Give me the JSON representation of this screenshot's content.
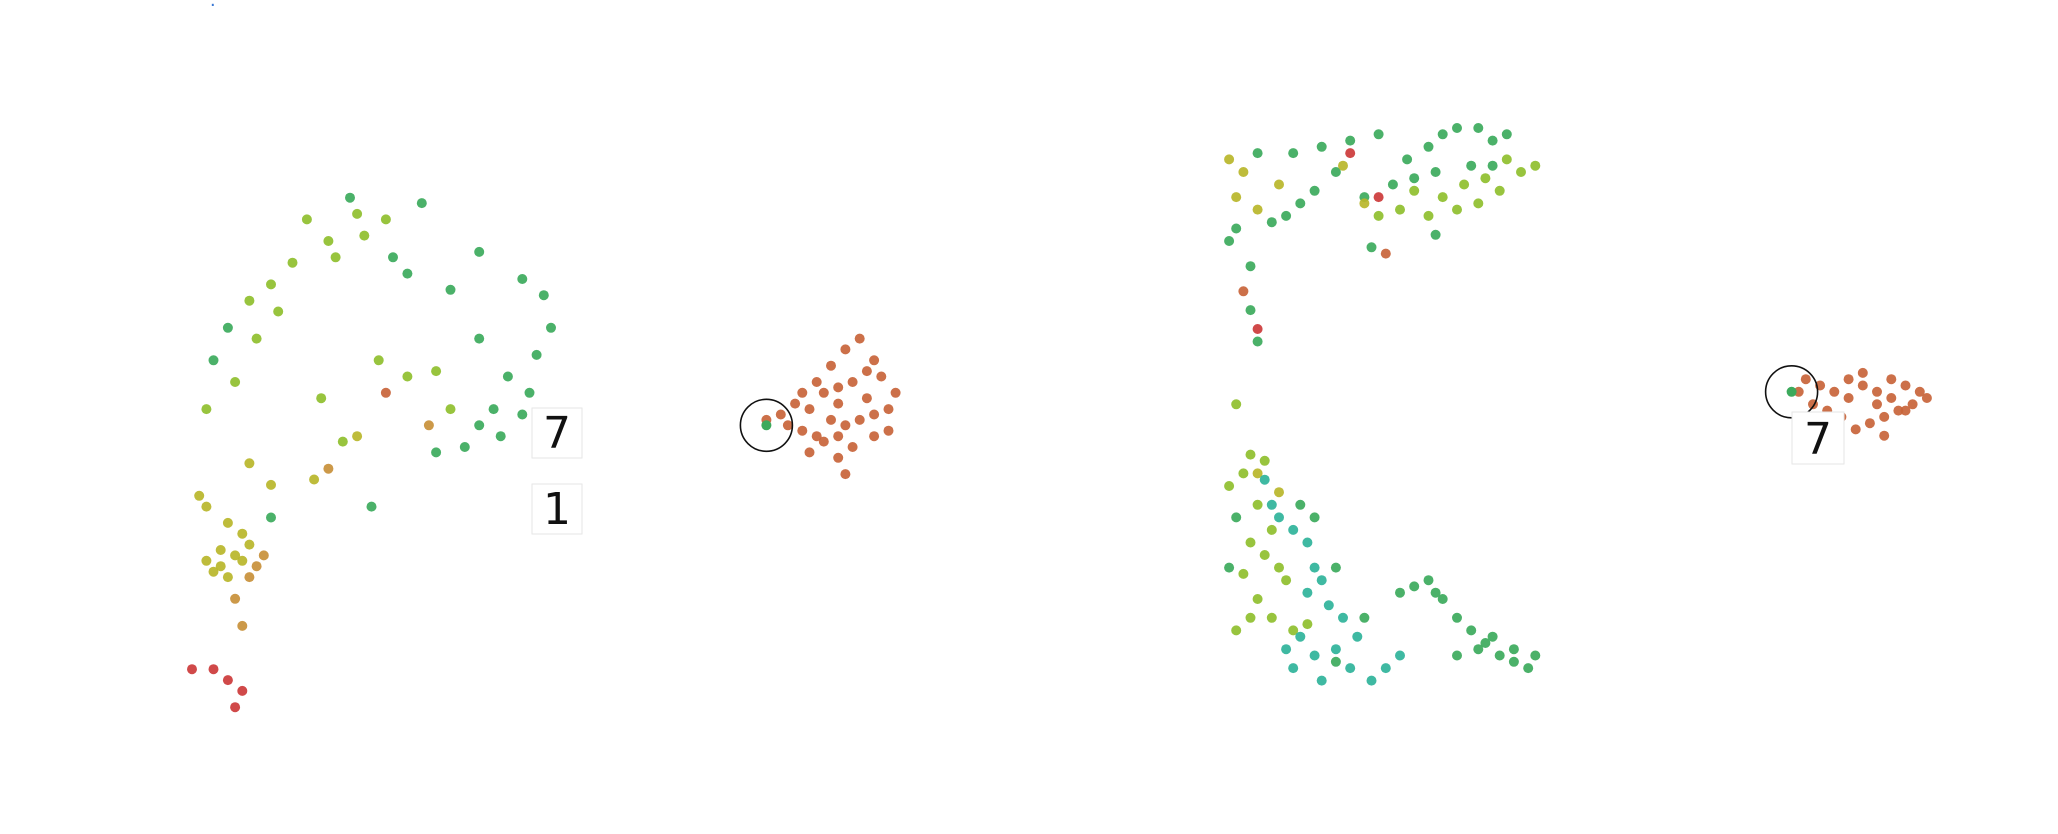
{
  "header": {
    "link_fragment": "."
  },
  "palette": {
    "orange": "#c8643a",
    "green": "#3caa5c",
    "lime": "#8fbf2e",
    "olive": "#b8b62a",
    "teal": "#2fb39a",
    "red": "#cc3a3a",
    "tan": "#c8903a"
  },
  "thumbnails": {
    "left_seven": "7",
    "left_one": "1",
    "right_seven": "7"
  },
  "chart_data": [
    {
      "type": "scatter",
      "title": "",
      "xlabel": "",
      "ylabel": "",
      "grid": false,
      "legend": "none",
      "xlim": [
        0,
        1
      ],
      "ylim": [
        0,
        1
      ],
      "highlight_point": {
        "x": 0.8,
        "y": 0.54
      },
      "series": [
        {
          "color_key": "green",
          "points": [
            [
              0.22,
              0.96
            ],
            [
              0.32,
              0.95
            ],
            [
              0.4,
              0.86
            ],
            [
              0.46,
              0.81
            ],
            [
              0.49,
              0.78
            ],
            [
              0.5,
              0.72
            ],
            [
              0.48,
              0.67
            ],
            [
              0.44,
              0.63
            ],
            [
              0.47,
              0.6
            ],
            [
              0.42,
              0.57
            ],
            [
              0.4,
              0.54
            ],
            [
              0.43,
              0.52
            ],
            [
              0.46,
              0.56
            ],
            [
              0.38,
              0.5
            ],
            [
              0.34,
              0.49
            ],
            [
              0.48,
              0.5
            ],
            [
              0.36,
              0.79
            ],
            [
              0.3,
              0.82
            ],
            [
              0.28,
              0.85
            ],
            [
              0.05,
              0.72
            ],
            [
              0.03,
              0.66
            ],
            [
              0.11,
              0.37
            ],
            [
              0.25,
              0.39
            ],
            [
              0.4,
              0.7
            ]
          ]
        },
        {
          "color_key": "lime",
          "points": [
            [
              0.16,
              0.92
            ],
            [
              0.23,
              0.93
            ],
            [
              0.27,
              0.92
            ],
            [
              0.19,
              0.88
            ],
            [
              0.14,
              0.84
            ],
            [
              0.11,
              0.8
            ],
            [
              0.08,
              0.77
            ],
            [
              0.12,
              0.75
            ],
            [
              0.2,
              0.85
            ],
            [
              0.24,
              0.89
            ],
            [
              0.34,
              0.64
            ],
            [
              0.3,
              0.63
            ],
            [
              0.26,
              0.66
            ],
            [
              0.06,
              0.62
            ],
            [
              0.09,
              0.7
            ],
            [
              0.02,
              0.57
            ],
            [
              0.18,
              0.59
            ],
            [
              0.21,
              0.51
            ],
            [
              0.36,
              0.57
            ]
          ]
        },
        {
          "color_key": "olive",
          "points": [
            [
              0.01,
              0.41
            ],
            [
              0.02,
              0.39
            ],
            [
              0.05,
              0.36
            ],
            [
              0.07,
              0.34
            ],
            [
              0.08,
              0.32
            ],
            [
              0.04,
              0.31
            ],
            [
              0.06,
              0.3
            ],
            [
              0.02,
              0.29
            ],
            [
              0.03,
              0.27
            ],
            [
              0.05,
              0.26
            ],
            [
              0.07,
              0.29
            ],
            [
              0.04,
              0.28
            ],
            [
              0.11,
              0.43
            ],
            [
              0.17,
              0.44
            ],
            [
              0.23,
              0.52
            ],
            [
              0.08,
              0.47
            ]
          ]
        },
        {
          "color_key": "tan",
          "points": [
            [
              0.06,
              0.22
            ],
            [
              0.09,
              0.28
            ],
            [
              0.1,
              0.3
            ],
            [
              0.08,
              0.26
            ],
            [
              0.07,
              0.17
            ],
            [
              0.33,
              0.54
            ],
            [
              0.19,
              0.46
            ]
          ]
        },
        {
          "color_key": "orange",
          "points": [
            [
              0.8,
              0.55
            ],
            [
              0.82,
              0.56
            ],
            [
              0.84,
              0.58
            ],
            [
              0.86,
              0.57
            ],
            [
              0.88,
              0.6
            ],
            [
              0.9,
              0.61
            ],
            [
              0.92,
              0.62
            ],
            [
              0.94,
              0.64
            ],
            [
              0.96,
              0.63
            ],
            [
              0.98,
              0.6
            ],
            [
              0.97,
              0.57
            ],
            [
              0.95,
              0.56
            ],
            [
              0.93,
              0.55
            ],
            [
              0.91,
              0.54
            ],
            [
              0.89,
              0.55
            ],
            [
              0.87,
              0.52
            ],
            [
              0.85,
              0.53
            ],
            [
              0.83,
              0.54
            ],
            [
              0.91,
              0.68
            ],
            [
              0.93,
              0.7
            ],
            [
              0.95,
              0.66
            ],
            [
              0.89,
              0.65
            ],
            [
              0.87,
              0.62
            ],
            [
              0.9,
              0.58
            ],
            [
              0.94,
              0.59
            ],
            [
              0.92,
              0.5
            ],
            [
              0.9,
              0.48
            ],
            [
              0.88,
              0.51
            ],
            [
              0.86,
              0.49
            ],
            [
              0.95,
              0.52
            ],
            [
              0.91,
              0.45
            ],
            [
              0.97,
              0.53
            ],
            [
              0.85,
              0.6
            ],
            [
              0.9,
              0.52
            ],
            [
              0.27,
              0.6
            ]
          ]
        },
        {
          "color_key": "red",
          "points": [
            [
              0.03,
              0.09
            ],
            [
              0.05,
              0.07
            ],
            [
              0.07,
              0.05
            ],
            [
              0.06,
              0.02
            ],
            [
              0.0,
              0.09
            ]
          ]
        }
      ]
    },
    {
      "type": "scatter",
      "title": "",
      "xlabel": "",
      "ylabel": "",
      "grid": false,
      "legend": "none",
      "xlim": [
        0,
        1
      ],
      "ylim": [
        0,
        1
      ],
      "highlight_point": {
        "x": 0.8,
        "y": 0.58
      },
      "series": [
        {
          "color_key": "green",
          "points": [
            [
              0.05,
              0.96
            ],
            [
              0.1,
              0.96
            ],
            [
              0.14,
              0.97
            ],
            [
              0.18,
              0.98
            ],
            [
              0.22,
              0.99
            ],
            [
              0.26,
              0.95
            ],
            [
              0.29,
              0.97
            ],
            [
              0.31,
              0.99
            ],
            [
              0.33,
              1.0
            ],
            [
              0.36,
              1.0
            ],
            [
              0.38,
              0.98
            ],
            [
              0.4,
              0.99
            ],
            [
              0.35,
              0.94
            ],
            [
              0.3,
              0.93
            ],
            [
              0.27,
              0.92
            ],
            [
              0.24,
              0.91
            ],
            [
              0.2,
              0.89
            ],
            [
              0.16,
              0.93
            ],
            [
              0.13,
              0.9
            ],
            [
              0.11,
              0.88
            ],
            [
              0.09,
              0.86
            ],
            [
              0.07,
              0.85
            ],
            [
              0.3,
              0.83
            ],
            [
              0.38,
              0.94
            ],
            [
              0.21,
              0.81
            ],
            [
              0.02,
              0.84
            ],
            [
              0.01,
              0.82
            ]
          ]
        },
        {
          "color_key": "lime",
          "points": [
            [
              0.27,
              0.9
            ],
            [
              0.31,
              0.89
            ],
            [
              0.34,
              0.91
            ],
            [
              0.37,
              0.92
            ],
            [
              0.4,
              0.95
            ],
            [
              0.42,
              0.93
            ],
            [
              0.44,
              0.94
            ],
            [
              0.39,
              0.9
            ],
            [
              0.36,
              0.88
            ],
            [
              0.33,
              0.87
            ],
            [
              0.29,
              0.86
            ],
            [
              0.25,
              0.87
            ],
            [
              0.22,
              0.86
            ],
            [
              0.02,
              0.56
            ],
            [
              0.04,
              0.48
            ],
            [
              0.03,
              0.45
            ],
            [
              0.06,
              0.47
            ],
            [
              0.01,
              0.43
            ],
            [
              0.05,
              0.4
            ],
            [
              0.07,
              0.36
            ],
            [
              0.04,
              0.34
            ],
            [
              0.06,
              0.32
            ],
            [
              0.08,
              0.3
            ],
            [
              0.09,
              0.28
            ],
            [
              0.03,
              0.29
            ],
            [
              0.05,
              0.25
            ],
            [
              0.07,
              0.22
            ],
            [
              0.1,
              0.2
            ],
            [
              0.12,
              0.21
            ],
            [
              0.04,
              0.22
            ],
            [
              0.02,
              0.2
            ]
          ]
        },
        {
          "color_key": "olive",
          "points": [
            [
              0.01,
              0.95
            ],
            [
              0.03,
              0.93
            ],
            [
              0.05,
              0.87
            ],
            [
              0.08,
              0.91
            ],
            [
              0.02,
              0.89
            ],
            [
              0.17,
              0.94
            ],
            [
              0.2,
              0.88
            ],
            [
              0.05,
              0.45
            ],
            [
              0.08,
              0.42
            ]
          ]
        },
        {
          "color_key": "teal",
          "points": [
            [
              0.06,
              0.44
            ],
            [
              0.07,
              0.4
            ],
            [
              0.08,
              0.38
            ],
            [
              0.1,
              0.36
            ],
            [
              0.12,
              0.34
            ],
            [
              0.13,
              0.3
            ],
            [
              0.14,
              0.28
            ],
            [
              0.12,
              0.26
            ],
            [
              0.15,
              0.24
            ],
            [
              0.17,
              0.22
            ],
            [
              0.19,
              0.19
            ],
            [
              0.16,
              0.17
            ],
            [
              0.13,
              0.16
            ],
            [
              0.1,
              0.14
            ],
            [
              0.09,
              0.17
            ],
            [
              0.11,
              0.19
            ],
            [
              0.18,
              0.14
            ],
            [
              0.21,
              0.12
            ],
            [
              0.23,
              0.14
            ],
            [
              0.25,
              0.16
            ],
            [
              0.14,
              0.12
            ]
          ]
        },
        {
          "color_key": "green",
          "points": [
            [
              0.25,
              0.26
            ],
            [
              0.27,
              0.27
            ],
            [
              0.29,
              0.28
            ],
            [
              0.31,
              0.25
            ],
            [
              0.33,
              0.22
            ],
            [
              0.35,
              0.2
            ],
            [
              0.37,
              0.18
            ],
            [
              0.39,
              0.16
            ],
            [
              0.41,
              0.15
            ],
            [
              0.43,
              0.14
            ],
            [
              0.44,
              0.16
            ],
            [
              0.41,
              0.17
            ],
            [
              0.38,
              0.19
            ],
            [
              0.36,
              0.17
            ],
            [
              0.3,
              0.26
            ],
            [
              0.2,
              0.22
            ],
            [
              0.16,
              0.3
            ],
            [
              0.13,
              0.38
            ],
            [
              0.11,
              0.4
            ],
            [
              0.02,
              0.38
            ],
            [
              0.01,
              0.3
            ],
            [
              0.04,
              0.71
            ],
            [
              0.05,
              0.66
            ],
            [
              0.04,
              0.78
            ],
            [
              0.16,
              0.15
            ],
            [
              0.33,
              0.16
            ]
          ]
        },
        {
          "color_key": "orange",
          "points": [
            [
              0.81,
              0.58
            ],
            [
              0.82,
              0.6
            ],
            [
              0.84,
              0.59
            ],
            [
              0.86,
              0.58
            ],
            [
              0.88,
              0.57
            ],
            [
              0.9,
              0.59
            ],
            [
              0.92,
              0.58
            ],
            [
              0.94,
              0.6
            ],
            [
              0.96,
              0.59
            ],
            [
              0.98,
              0.58
            ],
            [
              0.99,
              0.57
            ],
            [
              0.97,
              0.56
            ],
            [
              0.95,
              0.55
            ],
            [
              0.93,
              0.54
            ],
            [
              0.91,
              0.53
            ],
            [
              0.89,
              0.52
            ],
            [
              0.87,
              0.54
            ],
            [
              0.85,
              0.55
            ],
            [
              0.83,
              0.56
            ],
            [
              0.88,
              0.6
            ],
            [
              0.9,
              0.61
            ],
            [
              0.92,
              0.56
            ],
            [
              0.94,
              0.57
            ],
            [
              0.96,
              0.55
            ],
            [
              0.86,
              0.51
            ],
            [
              0.93,
              0.51
            ],
            [
              0.84,
              0.5
            ],
            [
              0.23,
              0.8
            ],
            [
              0.03,
              0.74
            ]
          ]
        },
        {
          "color_key": "red",
          "points": [
            [
              0.22,
              0.89
            ],
            [
              0.05,
              0.68
            ],
            [
              0.18,
              0.96
            ]
          ]
        }
      ]
    }
  ]
}
